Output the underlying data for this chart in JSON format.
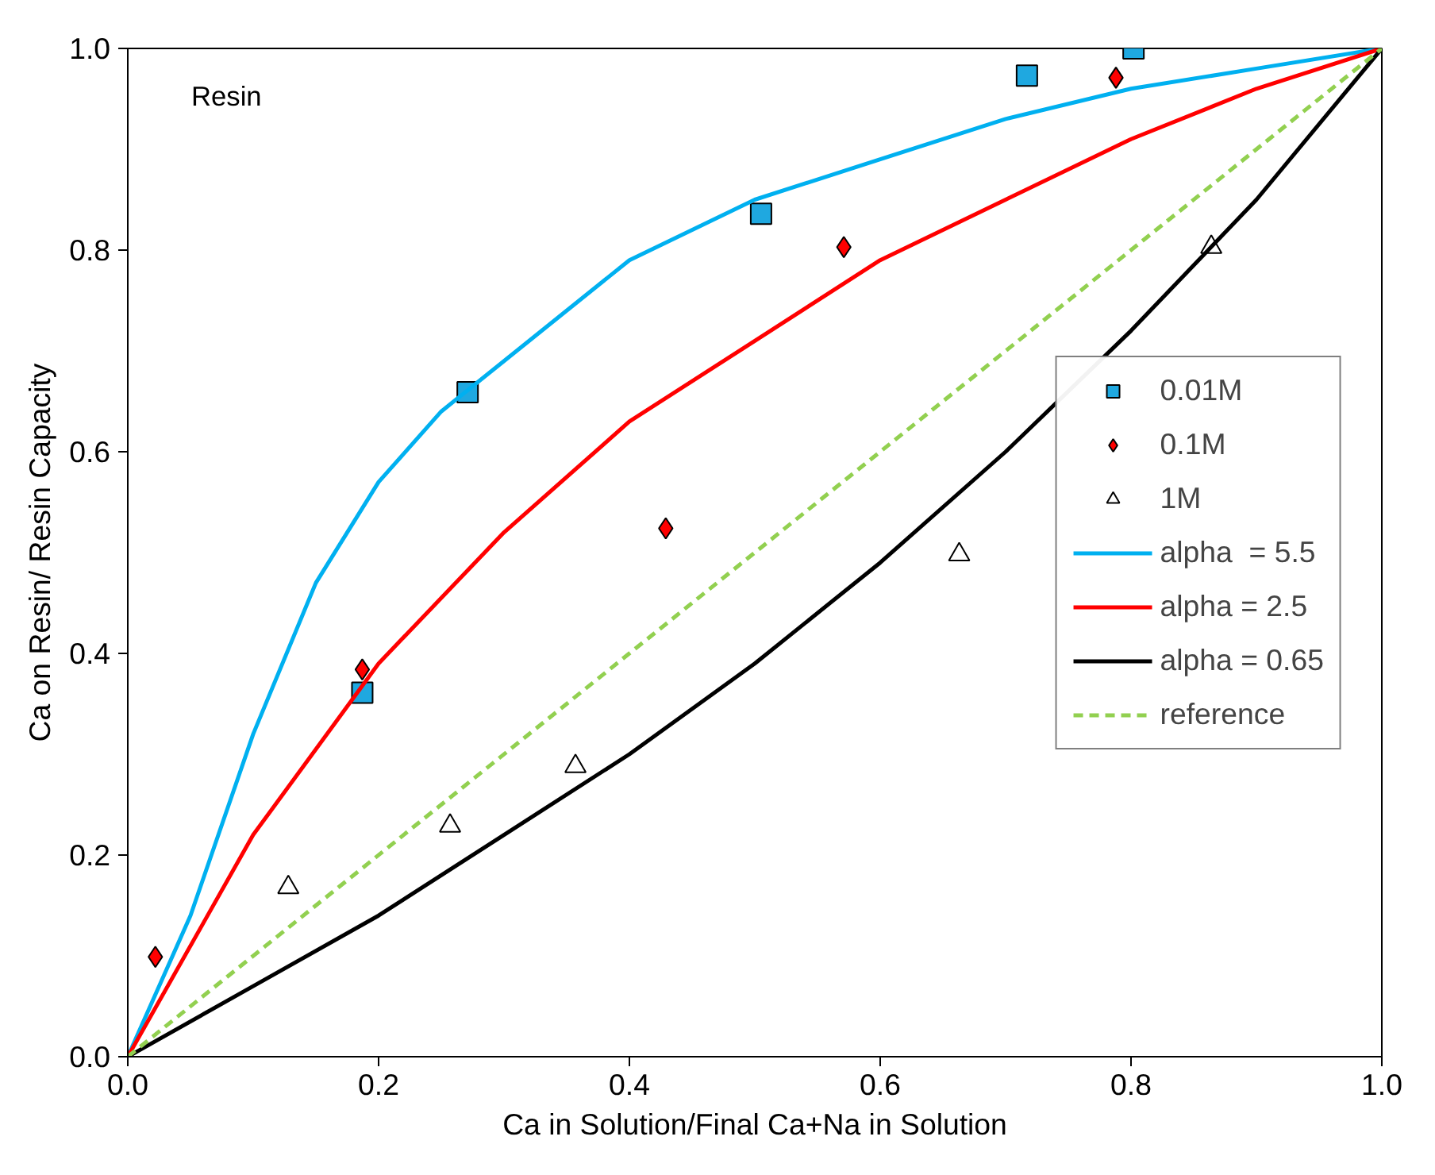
{
  "chart_data": {
    "type": "scatter",
    "xlabel": "Ca in Solution/Final Ca+Na in Solution",
    "ylabel": "Ca on Resin/ Resin Capacity",
    "annotations": [
      "Resin"
    ],
    "xlim": [
      0,
      1
    ],
    "ylim": [
      0,
      1
    ],
    "xticks": [
      {
        "value": 0,
        "label": "0.0"
      },
      {
        "value": 0.2,
        "label": "0.2"
      },
      {
        "value": 0.4,
        "label": "0.4"
      },
      {
        "value": 0.6,
        "label": "0.6"
      },
      {
        "value": 0.8,
        "label": "0.8"
      },
      {
        "value": 1,
        "label": "1.0"
      }
    ],
    "yticks": [
      {
        "value": 0,
        "label": "0.0"
      },
      {
        "value": 0.2,
        "label": "0.2"
      },
      {
        "value": 0.4,
        "label": "0.4"
      },
      {
        "value": 0.6,
        "label": "0.6"
      },
      {
        "value": 0.8,
        "label": "0.8"
      },
      {
        "value": 1,
        "label": "1.0"
      }
    ],
    "grid": false,
    "legend": "right",
    "series": [
      {
        "name": "0.01M",
        "marker": "square",
        "color": "#1fa8e0",
        "x": [
          0.187,
          0.271,
          0.505,
          0.717,
          0.802
        ],
        "values": [
          0.361,
          0.659,
          0.836,
          0.973,
          1.0
        ]
      },
      {
        "name": "0.1M",
        "marker": "diamond",
        "color": "#ff0000",
        "x": [
          0.022,
          0.187,
          0.429,
          0.571,
          0.788
        ],
        "values": [
          0.099,
          0.384,
          0.524,
          0.803,
          0.971
        ]
      },
      {
        "name": "1M",
        "marker": "triangle",
        "color": "#ffffff",
        "x": [
          0.128,
          0.257,
          0.357,
          0.663,
          0.864
        ],
        "values": [
          0.168,
          0.229,
          0.288,
          0.498,
          0.803
        ]
      },
      {
        "name": "alpha  = 5.5",
        "type": "line",
        "marker": "none",
        "line_style": "solid",
        "color": "#00b0f0",
        "x": [
          0,
          0.05,
          0.1,
          0.15,
          0.2,
          0.25,
          0.3,
          0.4,
          0.5,
          0.6,
          0.7,
          0.8,
          0.9,
          1
        ],
        "values": [
          0,
          0.14,
          0.32,
          0.47,
          0.57,
          0.64,
          0.69,
          0.79,
          0.85,
          0.89,
          0.93,
          0.96,
          0.98,
          1
        ]
      },
      {
        "name": "alpha = 2.5",
        "type": "line",
        "marker": "none",
        "line_style": "solid",
        "color": "#ff0000",
        "x": [
          0,
          0.1,
          0.2,
          0.3,
          0.4,
          0.5,
          0.6,
          0.7,
          0.8,
          0.9,
          1
        ],
        "values": [
          0,
          0.22,
          0.39,
          0.52,
          0.63,
          0.71,
          0.79,
          0.85,
          0.91,
          0.96,
          1
        ]
      },
      {
        "name": "alpha = 0.65",
        "type": "line",
        "marker": "none",
        "line_style": "solid",
        "color": "#000000",
        "x": [
          0,
          0.1,
          0.2,
          0.3,
          0.4,
          0.5,
          0.6,
          0.7,
          0.8,
          0.9,
          1
        ],
        "values": [
          0,
          0.07,
          0.14,
          0.22,
          0.3,
          0.39,
          0.49,
          0.6,
          0.72,
          0.85,
          1
        ]
      },
      {
        "name": "reference",
        "type": "line",
        "marker": "none",
        "line_style": "dashed",
        "color": "#92d050",
        "x": [
          0,
          1
        ],
        "values": [
          0,
          1
        ]
      }
    ]
  }
}
